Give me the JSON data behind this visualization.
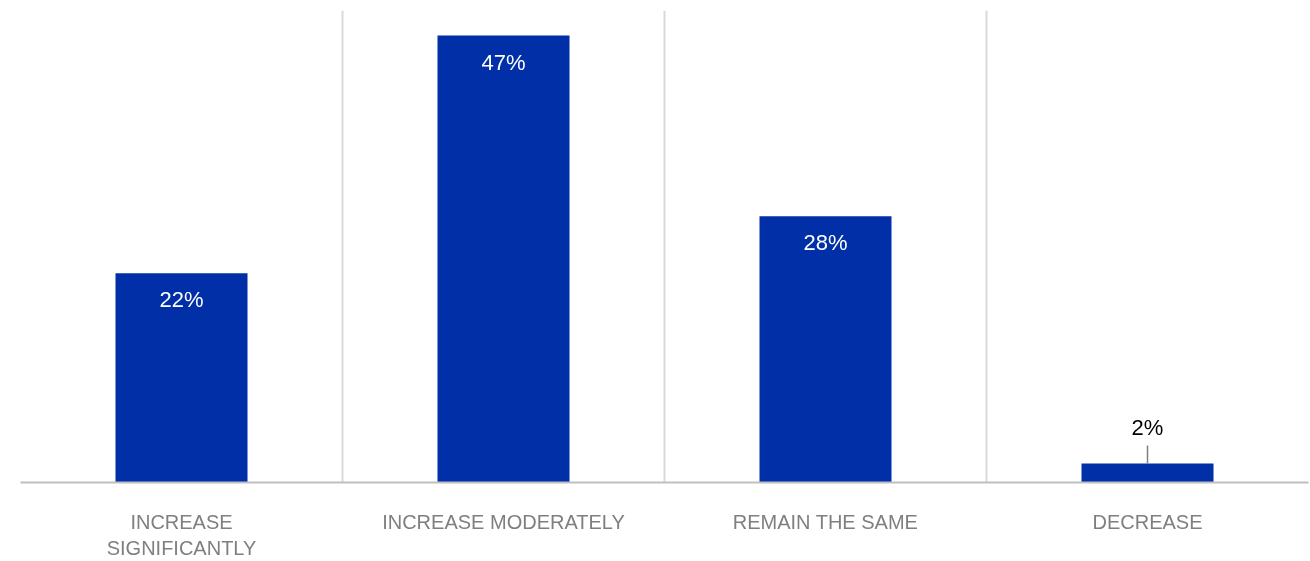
{
  "chart_data": {
    "type": "bar",
    "categories": [
      "INCREASE SIGNIFICANTLY",
      "INCREASE MODERATELY",
      "REMAIN THE SAME",
      "DECREASE"
    ],
    "values": [
      22,
      47,
      28,
      2
    ],
    "value_labels": [
      "22%",
      "47%",
      "28%",
      "2%"
    ],
    "color": "#002fa7",
    "grid": "x"
  }
}
